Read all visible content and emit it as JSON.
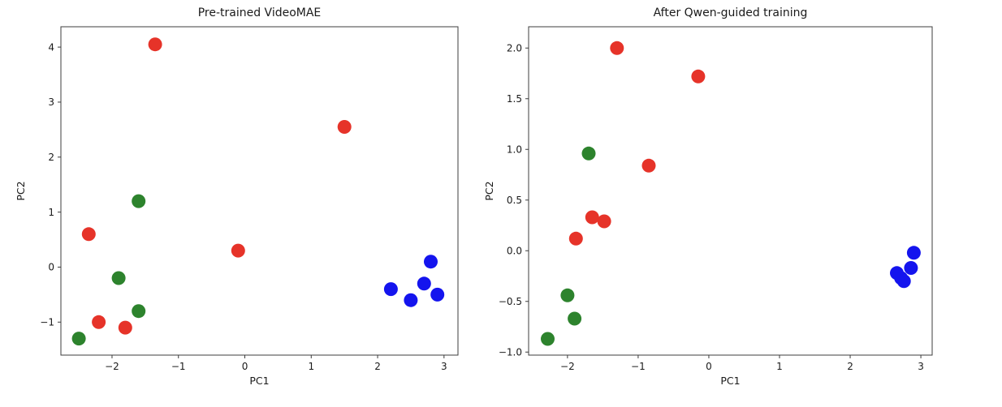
{
  "figure": {
    "background": "#ffffff",
    "text_color": "#1a1a1a",
    "spine_color": "#3c3c3c"
  },
  "chart_data": [
    {
      "type": "scatter",
      "title": "Pre-trained VideoMAE",
      "xlabel": "PC1",
      "ylabel": "PC2",
      "xlim": [
        -2.77,
        3.21
      ],
      "ylim": [
        -1.6,
        4.37
      ],
      "xtick_values": [
        -2,
        -1,
        0,
        1,
        2,
        3
      ],
      "xtick_labels": [
        "−2",
        "−1",
        "0",
        "1",
        "2",
        "3"
      ],
      "ytick_values": [
        -1,
        0,
        1,
        2,
        3,
        4
      ],
      "ytick_labels": [
        "−1",
        "0",
        "1",
        "2",
        "3",
        "4"
      ],
      "grid": false,
      "legend": null,
      "marker_radius_px": 8.5,
      "series": [
        {
          "name": "cluster-red",
          "color": "#e63329",
          "points": [
            [
              -1.35,
              4.05
            ],
            [
              1.5,
              2.55
            ],
            [
              -2.35,
              0.6
            ],
            [
              -0.1,
              0.3
            ],
            [
              -2.2,
              -1.0
            ],
            [
              -1.8,
              -1.1
            ]
          ]
        },
        {
          "name": "cluster-green",
          "color": "#2d832d",
          "points": [
            [
              -1.6,
              1.2
            ],
            [
              -1.9,
              -0.2
            ],
            [
              -1.6,
              -0.8
            ],
            [
              -2.5,
              -1.3
            ]
          ]
        },
        {
          "name": "cluster-blue",
          "color": "#1414ee",
          "points": [
            [
              2.8,
              0.1
            ],
            [
              2.2,
              -0.4
            ],
            [
              2.7,
              -0.3
            ],
            [
              2.5,
              -0.6
            ],
            [
              2.9,
              -0.5
            ]
          ]
        }
      ]
    },
    {
      "type": "scatter",
      "title": "After Qwen-guided training",
      "xlabel": "PC1",
      "ylabel": "PC2",
      "xlim": [
        -2.55,
        3.16
      ],
      "ylim": [
        -1.03,
        2.21
      ],
      "xtick_values": [
        -2,
        -1,
        0,
        1,
        2,
        3
      ],
      "xtick_labels": [
        "−2",
        "−1",
        "0",
        "1",
        "2",
        "3"
      ],
      "ytick_values": [
        -1.0,
        -0.5,
        0.0,
        0.5,
        1.0,
        1.5,
        2.0
      ],
      "ytick_labels": [
        "−1.0",
        "−0.5",
        "0.0",
        "0.5",
        "1.0",
        "1.5",
        "2.0"
      ],
      "grid": false,
      "legend": null,
      "marker_radius_px": 8.5,
      "series": [
        {
          "name": "cluster-red",
          "color": "#e63329",
          "points": [
            [
              -1.3,
              2.0
            ],
            [
              -0.15,
              1.72
            ],
            [
              -0.85,
              0.84
            ],
            [
              -1.65,
              0.33
            ],
            [
              -1.48,
              0.29
            ],
            [
              -1.88,
              0.12
            ]
          ]
        },
        {
          "name": "cluster-green",
          "color": "#2d832d",
          "points": [
            [
              -1.7,
              0.96
            ],
            [
              -2.0,
              -0.44
            ],
            [
              -1.9,
              -0.67
            ],
            [
              -2.28,
              -0.87
            ]
          ]
        },
        {
          "name": "cluster-blue",
          "color": "#1414ee",
          "points": [
            [
              2.9,
              -0.02
            ],
            [
              2.86,
              -0.17
            ],
            [
              2.66,
              -0.22
            ],
            [
              2.72,
              -0.27
            ],
            [
              2.76,
              -0.3
            ]
          ]
        }
      ]
    }
  ]
}
